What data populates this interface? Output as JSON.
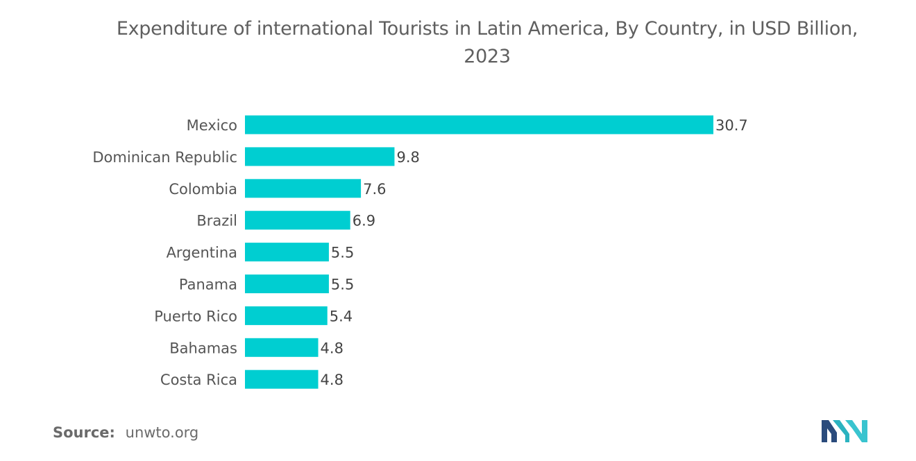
{
  "chart_data": {
    "type": "bar",
    "orientation": "horizontal",
    "title": "Expenditure of international Tourists in Latin America, By Country, in USD Billion, 2023",
    "title_lines": [
      "Expenditure of international Tourists in Latin America, By Country, in USD Billion,",
      "2023"
    ],
    "categories": [
      "Mexico",
      "Dominican Republic",
      "Colombia",
      "Brazil",
      "Argentina",
      "Panama",
      "Puerto Rico",
      "Bahamas",
      "Costa Rica"
    ],
    "values": [
      30.7,
      9.8,
      7.6,
      6.9,
      5.5,
      5.5,
      5.4,
      4.8,
      4.8
    ],
    "value_labels": [
      "30.7",
      "9.8",
      "7.6",
      "6.9",
      "5.5",
      "5.5",
      "5.4",
      "4.8",
      "4.8"
    ],
    "xlabel": "",
    "ylabel": "",
    "xlim": [
      0,
      30.7
    ],
    "grid": false,
    "bar_color": "#00CED1"
  },
  "source": {
    "label": "Source:",
    "value": "unwto.org"
  },
  "logo": {
    "icon": "mordor-intelligence-logo-icon",
    "colors": [
      "#1f3a5f",
      "#2bb3c0"
    ]
  }
}
